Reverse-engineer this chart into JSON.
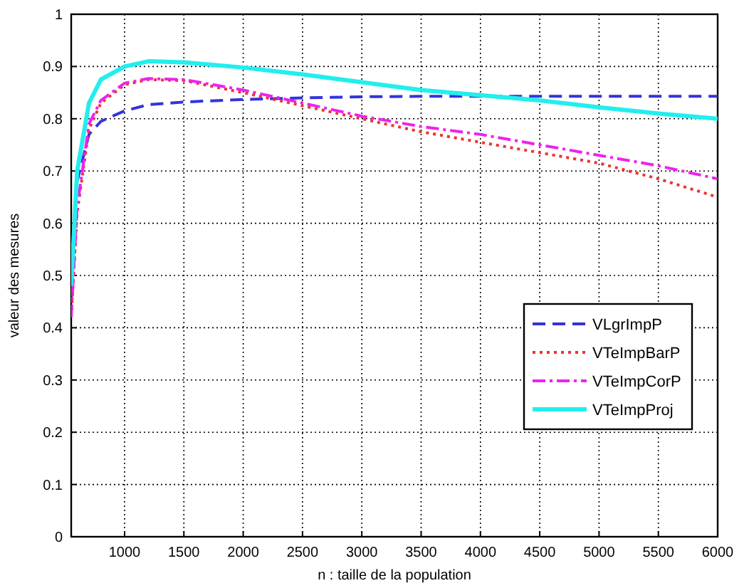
{
  "chart_data": {
    "type": "line",
    "xlabel": "n : taille de la population",
    "ylabel": "valeur des mesures",
    "xlim": [
      550,
      6000
    ],
    "xticks": [
      1000,
      1500,
      2000,
      2500,
      3000,
      3500,
      4000,
      4500,
      5000,
      5500,
      6000
    ],
    "ylim": [
      0,
      1
    ],
    "yticks": [
      0,
      0.1,
      0.2,
      0.3,
      0.4,
      0.5,
      0.6,
      0.7,
      0.8,
      0.9,
      1
    ],
    "grid": true,
    "legend": "right",
    "marker": "none",
    "x": [
      550,
      600,
      700,
      800,
      1000,
      1200,
      1500,
      2000,
      2500,
      3000,
      3500,
      4000,
      4500,
      5000,
      5500,
      6000
    ],
    "series": [
      {
        "name": "VLgrImpP",
        "color": "#3333dd",
        "line_style": "dashed",
        "values": [
          0.45,
          0.68,
          0.77,
          0.795,
          0.815,
          0.827,
          0.832,
          0.837,
          0.84,
          0.842,
          0.843,
          0.843,
          0.843,
          0.843,
          0.843,
          0.843
        ]
      },
      {
        "name": "VTeImpBarP",
        "color": "#ee3333",
        "line_style": "dotted",
        "values": [
          0.42,
          0.62,
          0.78,
          0.83,
          0.865,
          0.875,
          0.873,
          0.85,
          0.825,
          0.8,
          0.775,
          0.755,
          0.735,
          0.715,
          0.685,
          0.65
        ]
      },
      {
        "name": "VTeImpCorP",
        "color": "#ee22ee",
        "line_style": "dashdot",
        "values": [
          0.42,
          0.63,
          0.79,
          0.835,
          0.868,
          0.877,
          0.875,
          0.855,
          0.83,
          0.805,
          0.785,
          0.77,
          0.75,
          0.73,
          0.71,
          0.685
        ]
      },
      {
        "name": "VTeImpProj",
        "color": "#22eeee",
        "line_style": "solid",
        "values": [
          0.48,
          0.7,
          0.83,
          0.875,
          0.9,
          0.91,
          0.908,
          0.898,
          0.885,
          0.87,
          0.855,
          0.845,
          0.835,
          0.822,
          0.81,
          0.8
        ]
      }
    ]
  }
}
